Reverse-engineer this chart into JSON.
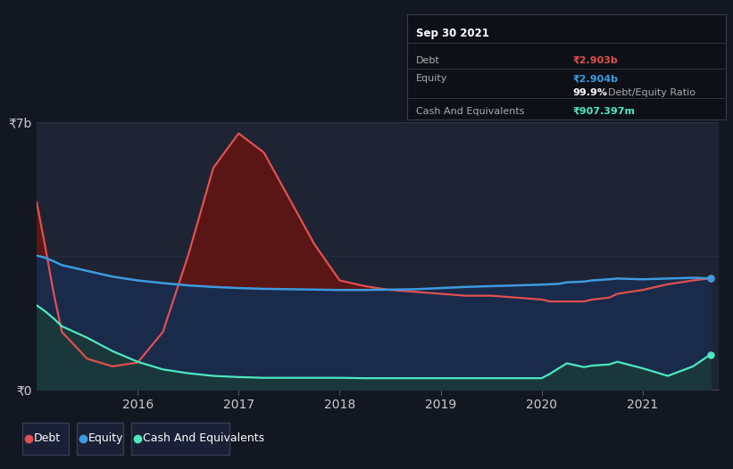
{
  "bg_color": "#131722",
  "plot_bg": "#1e2433",
  "debt_color": "#e05050",
  "equity_color": "#3d9be0",
  "cash_color": "#4de8c0",
  "debt_fill_color": "#5a1515",
  "equity_fill_color": "#1a2a4a",
  "cash_fill_color": "#1a3a3a",
  "time_points": [
    2015.0,
    2015.08,
    2015.17,
    2015.25,
    2015.5,
    2015.75,
    2016.0,
    2016.25,
    2016.5,
    2016.75,
    2017.0,
    2017.25,
    2017.5,
    2017.75,
    2018.0,
    2018.25,
    2018.5,
    2018.75,
    2019.0,
    2019.25,
    2019.5,
    2019.75,
    2020.0,
    2020.08,
    2020.17,
    2020.25,
    2020.42,
    2020.5,
    2020.67,
    2020.75,
    2021.0,
    2021.25,
    2021.5,
    2021.67
  ],
  "debt_values": [
    4900000000.0,
    3800000000.0,
    2500000000.0,
    1500000000.0,
    800000000.0,
    600000000.0,
    700000000.0,
    1500000000.0,
    3500000000.0,
    5800000000.0,
    6700000000.0,
    6200000000.0,
    5000000000.0,
    3800000000.0,
    2850000000.0,
    2700000000.0,
    2600000000.0,
    2550000000.0,
    2500000000.0,
    2450000000.0,
    2450000000.0,
    2400000000.0,
    2350000000.0,
    2300000000.0,
    2300000000.0,
    2300000000.0,
    2300000000.0,
    2350000000.0,
    2400000000.0,
    2500000000.0,
    2600000000.0,
    2750000000.0,
    2850000000.0,
    2903000000.0
  ],
  "equity_values": [
    3500000000.0,
    3450000000.0,
    3350000000.0,
    3250000000.0,
    3100000000.0,
    2950000000.0,
    2850000000.0,
    2780000000.0,
    2720000000.0,
    2680000000.0,
    2650000000.0,
    2630000000.0,
    2620000000.0,
    2610000000.0,
    2600000000.0,
    2600000000.0,
    2610000000.0,
    2620000000.0,
    2650000000.0,
    2680000000.0,
    2700000000.0,
    2720000000.0,
    2740000000.0,
    2750000000.0,
    2760000000.0,
    2800000000.0,
    2820000000.0,
    2850000000.0,
    2880000000.0,
    2900000000.0,
    2880000000.0,
    2900000000.0,
    2920000000.0,
    2904000000.0
  ],
  "cash_values": [
    2200000000.0,
    2050000000.0,
    1850000000.0,
    1650000000.0,
    1350000000.0,
    1000000000.0,
    720000000.0,
    520000000.0,
    420000000.0,
    350000000.0,
    320000000.0,
    300000000.0,
    300000000.0,
    300000000.0,
    300000000.0,
    290000000.0,
    290000000.0,
    290000000.0,
    290000000.0,
    290000000.0,
    290000000.0,
    290000000.0,
    290000000.0,
    400000000.0,
    550000000.0,
    680000000.0,
    580000000.0,
    620000000.0,
    650000000.0,
    720000000.0,
    550000000.0,
    350000000.0,
    600000000.0,
    907000000.0
  ],
  "xlim": [
    2015.0,
    2021.75
  ],
  "ylim": [
    0,
    7000000000.0
  ],
  "x_ticks": [
    2016,
    2017,
    2018,
    2019,
    2020,
    2021
  ],
  "ytick_labels": [
    "₹0",
    "₹7b"
  ],
  "legend_items": [
    "Debt",
    "Equity",
    "Cash And Equivalents"
  ],
  "legend_colors": [
    "#e05050",
    "#3d9be0",
    "#4de8c0"
  ],
  "tooltip": {
    "title": "Sep 30 2021",
    "rows": [
      {
        "label": "Debt",
        "value": "₹2.903b",
        "value_color": "#e05050"
      },
      {
        "label": "Equity",
        "value": "₹2.904b",
        "value_color": "#3d9be0"
      },
      {
        "label": "",
        "value": "99.9%",
        "value_color": "#ffffff",
        "extra": "Debt/Equity Ratio",
        "extra_color": "#aaaaaa"
      },
      {
        "label": "Cash And Equivalents",
        "value": "₹907.397m",
        "value_color": "#4de8c0"
      }
    ]
  }
}
